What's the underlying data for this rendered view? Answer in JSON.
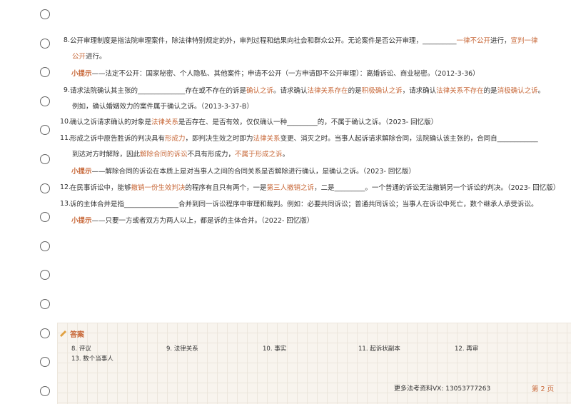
{
  "blocks": [
    {
      "number": "8.",
      "lines": [
        [
          {
            "text": "公开审理制度是指法院审理案件，除法律特别规定的外，审判过程和结果向社会和群众公开。无论案件是否公开审理，__________"
          },
          {
            "text": "一律不公开",
            "color": "#c8693a"
          },
          {
            "text": "进行，"
          },
          {
            "text": "宣判一律",
            "color": "#c8693a"
          }
        ],
        [
          {
            "text": "公开",
            "color": "#c8693a"
          },
          {
            "text": "进行。"
          }
        ]
      ]
    },
    {
      "lines": [
        [
          {
            "text": "小提示",
            "color": "#c8693a",
            "bold": true
          },
          {
            "text": "——法定不公开：国家秘密、个人隐私、其他案件；申请不公开（一方申请即不公开审理）：离婚诉讼、商业秘密。（2012-3-36）"
          }
        ]
      ]
    },
    {
      "number": "9.",
      "lines": [
        [
          {
            "text": "请求法院确认其主张的______________存在或不存在的诉是"
          },
          {
            "text": "确认之诉",
            "color": "#c8693a"
          },
          {
            "text": "。请求确认"
          },
          {
            "text": "法律关系存在",
            "color": "#c8693a"
          },
          {
            "text": "的是"
          },
          {
            "text": "积极确认之诉",
            "color": "#c8693a"
          },
          {
            "text": "，请求确认"
          },
          {
            "text": "法律关系不存在",
            "color": "#c8693a"
          },
          {
            "text": "的是"
          },
          {
            "text": "消极确认之诉",
            "color": "#c8693a"
          },
          {
            "text": "。"
          }
        ],
        [
          {
            "text": "例如，确认婚姻效力的案件属于确认之诉。（2013-3-37-B）"
          }
        ]
      ]
    },
    {
      "number": "10.",
      "lines": [
        [
          {
            "text": "确认之诉请求确认的对象是"
          },
          {
            "text": "法律关系",
            "color": "#c8693a"
          },
          {
            "text": "是否存在、是否有效，仅仅确认一种_________的，不属于确认之诉。（2023- 回忆版）"
          }
        ]
      ]
    },
    {
      "number": "11.",
      "lines": [
        [
          {
            "text": "形成之诉中原告胜诉的判决具有"
          },
          {
            "text": "形成力",
            "color": "#c8693a"
          },
          {
            "text": "，即判决生效之时即为"
          },
          {
            "text": "法律关系",
            "color": "#c8693a"
          },
          {
            "text": "变更、消灭之时。当事人起诉请求解除合同，法院确认该主张的，合同自____________"
          }
        ],
        [
          {
            "text": "到达对方时解除，因此"
          },
          {
            "text": "解除合同的诉讼",
            "color": "#c8693a"
          },
          {
            "text": "不具有形成力，"
          },
          {
            "text": "不属于形成之诉",
            "color": "#c8693a"
          },
          {
            "text": "。"
          }
        ]
      ]
    },
    {
      "lines": [
        [
          {
            "text": "小提示",
            "color": "#c8693a",
            "bold": true
          },
          {
            "text": "——解除合同的诉讼在本质上是对当事人之间的合同关系是否解除进行确认，是确认之诉。（2023- 回忆版）"
          }
        ]
      ]
    },
    {
      "number": "12.",
      "lines": [
        [
          {
            "text": "在民事诉讼中，能够"
          },
          {
            "text": "撤销一份生效判决",
            "color": "#c8693a"
          },
          {
            "text": "的程序有且只有两个，一是"
          },
          {
            "text": "第三人撤销之诉",
            "color": "#c8693a"
          },
          {
            "text": "，二是_________。一个普通的诉讼无法撤销另一个诉讼的判决。（2023- 回忆版）"
          }
        ]
      ]
    },
    {
      "number": "13.",
      "lines": [
        [
          {
            "text": "诉的主体合并是指________________合并到同一诉讼程序中审理和裁判。例如：必要共同诉讼；普通共同诉讼；当事人在诉讼中死亡，数个继承人承受诉讼。"
          }
        ]
      ]
    },
    {
      "lines": [
        [
          {
            "text": "小提示",
            "color": "#c8693a",
            "bold": true
          },
          {
            "text": "——只要一方或者双方为两人以上，都是诉的主体合并。（2022- 回忆版）"
          }
        ]
      ]
    }
  ],
  "answers": {
    "title": "答案",
    "items": [
      "8. 评议",
      "9. 法律关系",
      "10. 事实",
      "11. 起诉状副本",
      "12. 再审",
      "13. 数个当事人"
    ]
  },
  "footer": {
    "note": "更多法考资料VX: 13053777263",
    "page": "第 2 页"
  }
}
